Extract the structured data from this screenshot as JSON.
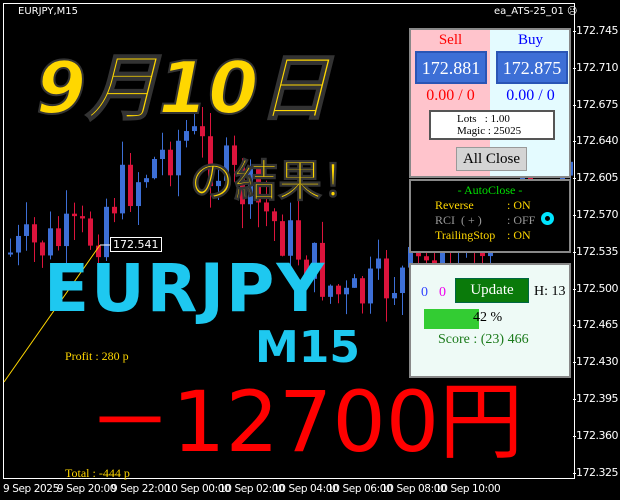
{
  "window": {
    "symbol_title": "EURJPY,M15",
    "ea_name": "ea_ATS-25_01",
    "ea_status_icon": "sad-face-icon"
  },
  "price_axis": [
    "172.745",
    "172.710",
    "172.675",
    "172.640",
    "172.605",
    "172.570",
    "172.535",
    "172.500",
    "172.465",
    "172.430",
    "172.395",
    "172.360",
    "172.325"
  ],
  "time_axis": [
    "9 Sep 2025",
    "9 Sep 20:00",
    "9 Sep 22:00",
    "10 Sep 00:00",
    "10 Sep 02:00",
    "10 Sep 04:00",
    "10 Sep 06:00",
    "10 Sep 08:00",
    "10 Sep 10:00"
  ],
  "price_label": "172.541",
  "overlay": {
    "date": "9月10日",
    "result": "の結果！",
    "pair": "EURJPY",
    "timeframe": "M15",
    "amount": "－12700円"
  },
  "chart_text": {
    "profit": "Profit : 280 p",
    "total": "Total : -444 p"
  },
  "panel": {
    "sell_label": "Sell",
    "buy_label": "Buy",
    "sell_price": "172.881",
    "buy_price": "172.875",
    "sell_pl": "0.00 / 0",
    "buy_pl": "0.00 / 0",
    "lots": "Lots   : 1.00",
    "magic": "Magic : 25025",
    "all_close": "All Close",
    "autoclose_title": "- AutoClose -",
    "reverse_label": "Reverse",
    "reverse_value": ": ON",
    "rci_label": "RCI  ( + )",
    "rci_value": ": OFF",
    "trailing_label": "TrailingStop",
    "trailing_value": ": ON",
    "count_blue": "0",
    "count_magenta": "0",
    "update": "Update",
    "h_label": "H: 13",
    "progress_percent": 42,
    "progress_text": "42 %",
    "score": "Score : (23) 466"
  },
  "colors": {
    "bull": "#3d6fd6",
    "bear": "#dc143c",
    "overlay_yellow": "#ffd700",
    "overlay_cyan": "#1ec8f0",
    "overlay_red": "#ff0000"
  }
}
